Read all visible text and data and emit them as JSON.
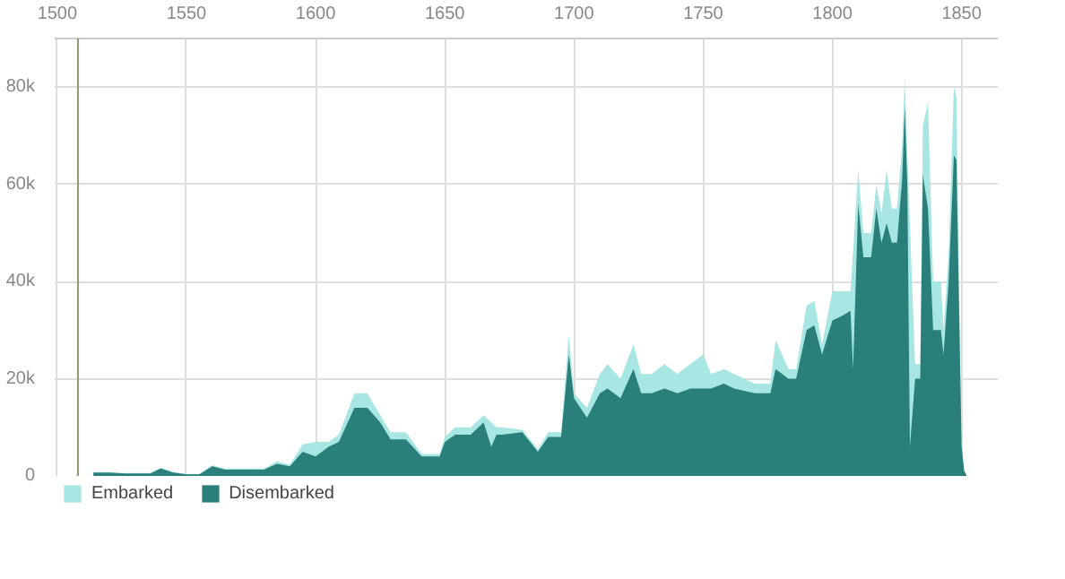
{
  "chart_data": {
    "type": "area",
    "x": [
      1514,
      1520,
      1526,
      1536,
      1540,
      1545,
      1550,
      1555,
      1560,
      1565,
      1580,
      1585,
      1590,
      1595,
      1600,
      1605,
      1609,
      1615,
      1620,
      1625,
      1629,
      1635,
      1641,
      1648,
      1650,
      1654,
      1660,
      1665,
      1668,
      1670,
      1672,
      1680,
      1686,
      1690,
      1695,
      1698,
      1700,
      1705,
      1710,
      1713,
      1718,
      1723,
      1726,
      1730,
      1735,
      1740,
      1745,
      1750,
      1753,
      1758,
      1762,
      1770,
      1776,
      1778,
      1783,
      1786,
      1790,
      1793,
      1796,
      1800,
      1804,
      1807,
      1808,
      1810,
      1812,
      1815,
      1817,
      1819,
      1821,
      1823,
      1825,
      1827,
      1828,
      1829,
      1830,
      1832,
      1834,
      1835,
      1837,
      1839,
      1842,
      1843,
      1845,
      1847,
      1848,
      1849,
      1850,
      1851,
      1852
    ],
    "series": [
      {
        "name": "Embarked",
        "color": "#a8e6e3",
        "values": [
          800,
          800,
          600,
          600,
          1700,
          800,
          400,
          400,
          2200,
          1500,
          1500,
          3000,
          2300,
          6500,
          7000,
          7000,
          8500,
          17000,
          17000,
          12500,
          9000,
          9000,
          4500,
          4500,
          8000,
          10000,
          10000,
          12500,
          null,
          10000,
          10000,
          9500,
          5500,
          9000,
          9000,
          29000,
          17000,
          14000,
          21000,
          23000,
          20000,
          27000,
          21000,
          21000,
          23000,
          21000,
          23000,
          25000,
          21000,
          22000,
          21000,
          19000,
          19000,
          28000,
          22000,
          22000,
          35000,
          36000,
          27000,
          38000,
          38000,
          38000,
          null,
          63000,
          50000,
          50000,
          60000,
          54000,
          63000,
          55000,
          55000,
          68000,
          82000,
          66000,
          null,
          23000,
          23000,
          72000,
          77000,
          40000,
          40000,
          30000,
          46000,
          80000,
          78000,
          40000,
          7000,
          1200,
          0
        ]
      },
      {
        "name": "Disembarked",
        "color": "#2a7f7a",
        "values": [
          700,
          700,
          500,
          500,
          1500,
          700,
          300,
          300,
          2000,
          1300,
          1300,
          2500,
          2000,
          5000,
          4000,
          6000,
          7000,
          14000,
          14000,
          11000,
          7500,
          7500,
          4000,
          4000,
          7000,
          8500,
          8500,
          11000,
          6000,
          8500,
          8500,
          9000,
          5000,
          8000,
          8000,
          25000,
          16000,
          12000,
          17000,
          18000,
          16000,
          22000,
          17000,
          17000,
          18000,
          17000,
          18000,
          18000,
          18000,
          19000,
          18000,
          17000,
          17000,
          22000,
          20000,
          20000,
          30000,
          31000,
          25000,
          32000,
          33000,
          34000,
          22000,
          56000,
          45000,
          45000,
          55000,
          48000,
          52000,
          48000,
          48000,
          61000,
          76000,
          60000,
          6000,
          20000,
          20000,
          62000,
          55000,
          30000,
          30000,
          25000,
          40000,
          66000,
          65000,
          35000,
          6000,
          1000,
          0
        ]
      }
    ],
    "xlim": [
      1499,
      1864
    ],
    "xticks": [
      1500,
      1550,
      1600,
      1650,
      1700,
      1750,
      1800,
      1850
    ],
    "ylim": [
      0,
      90000
    ],
    "yticks": [
      {
        "value": 0,
        "label": "0"
      },
      {
        "value": 20000,
        "label": "20k"
      },
      {
        "value": 40000,
        "label": "40k"
      },
      {
        "value": 60000,
        "label": "60k"
      },
      {
        "value": 80000,
        "label": "80k"
      }
    ],
    "ref_lines": [
      {
        "axis": "x",
        "value": 1508,
        "color": "#8a9a6a"
      }
    ],
    "grid": true,
    "legend": "bottom"
  }
}
